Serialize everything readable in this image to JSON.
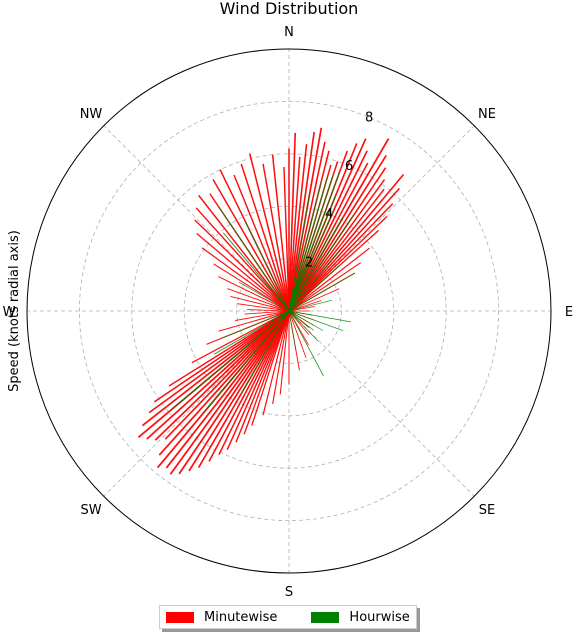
{
  "chart_data": {
    "type": "polar-bar",
    "title": "Wind Distribution",
    "ylabel": "Speed (knots radial axis)",
    "direction_labels": [
      "N",
      "NE",
      "E",
      "SE",
      "S",
      "SW",
      "W",
      "NW"
    ],
    "direction_angles": [
      0,
      45,
      90,
      135,
      180,
      225,
      270,
      315
    ],
    "radial_ticks": [
      2,
      4,
      6,
      8
    ],
    "rlim": [
      0,
      10
    ],
    "grid": true,
    "legend": "bottom-center",
    "series": [
      {
        "name": "Minutewise",
        "color": "#ff0000",
        "bars": [
          [
            0,
            6.2
          ],
          [
            2,
            6.8
          ],
          [
            4,
            5.9
          ],
          [
            6,
            6.4
          ],
          [
            8,
            6.9
          ],
          [
            10,
            7.1
          ],
          [
            12,
            6.6
          ],
          [
            14,
            6.3
          ],
          [
            16,
            5.8
          ],
          [
            18,
            6.0
          ],
          [
            20,
            6.5
          ],
          [
            22,
            6.9
          ],
          [
            24,
            7.2
          ],
          [
            26,
            6.8
          ],
          [
            28,
            6.4
          ],
          [
            30,
            7.6
          ],
          [
            32,
            7.0
          ],
          [
            34,
            6.6
          ],
          [
            36,
            6.2
          ],
          [
            38,
            5.9
          ],
          [
            40,
            6.8
          ],
          [
            42,
            6.3
          ],
          [
            44,
            5.7
          ],
          [
            46,
            5.2
          ],
          [
            48,
            4.6
          ],
          [
            52,
            3.9
          ],
          [
            56,
            3.3
          ],
          [
            60,
            2.9
          ],
          [
            66,
            2.1
          ],
          [
            72,
            1.3
          ],
          [
            80,
            1.0
          ],
          [
            90,
            0.8
          ],
          [
            100,
            0.9
          ],
          [
            110,
            1.0
          ],
          [
            120,
            1.1
          ],
          [
            130,
            1.0
          ],
          [
            140,
            1.2
          ],
          [
            150,
            1.5
          ],
          [
            160,
            1.9
          ],
          [
            170,
            2.3
          ],
          [
            180,
            2.8
          ],
          [
            186,
            3.2
          ],
          [
            190,
            3.6
          ],
          [
            194,
            4.1
          ],
          [
            198,
            4.6
          ],
          [
            200,
            5.0
          ],
          [
            202,
            5.4
          ],
          [
            204,
            5.8
          ],
          [
            206,
            6.1
          ],
          [
            208,
            6.5
          ],
          [
            210,
            6.9
          ],
          [
            212,
            7.2
          ],
          [
            214,
            7.5
          ],
          [
            216,
            7.7
          ],
          [
            218,
            7.6
          ],
          [
            220,
            7.8
          ],
          [
            222,
            7.4
          ],
          [
            224,
            6.8
          ],
          [
            226,
            7.1
          ],
          [
            228,
            7.3
          ],
          [
            230,
            7.5
          ],
          [
            232,
            7.1
          ],
          [
            234,
            6.6
          ],
          [
            236,
            6.2
          ],
          [
            238,
            5.4
          ],
          [
            242,
            4.2
          ],
          [
            248,
            3.4
          ],
          [
            254,
            2.8
          ],
          [
            260,
            2.1
          ],
          [
            266,
            1.7
          ],
          [
            272,
            1.6
          ],
          [
            278,
            2.0
          ],
          [
            284,
            2.3
          ],
          [
            290,
            2.5
          ],
          [
            296,
            3.0
          ],
          [
            302,
            3.4
          ],
          [
            306,
            4.1
          ],
          [
            310,
            4.6
          ],
          [
            314,
            5.0
          ],
          [
            318,
            5.3
          ],
          [
            322,
            5.6
          ],
          [
            326,
            5.4
          ],
          [
            330,
            5.8
          ],
          [
            334,
            6.0
          ],
          [
            338,
            5.6
          ],
          [
            342,
            5.9
          ],
          [
            346,
            6.2
          ],
          [
            350,
            5.7
          ],
          [
            354,
            6.0
          ],
          [
            358,
            5.5
          ]
        ]
      },
      {
        "name": "Hourwise",
        "color": "#008000",
        "bars": [
          [
            10,
            4.6
          ],
          [
            14,
            5.0
          ],
          [
            16,
            5.3
          ],
          [
            18,
            5.4
          ],
          [
            20,
            5.6
          ],
          [
            22,
            4.8
          ],
          [
            24,
            4.2
          ],
          [
            28,
            3.6
          ],
          [
            30,
            4.1
          ],
          [
            34,
            4.4
          ],
          [
            40,
            3.1
          ],
          [
            48,
            2.6
          ],
          [
            60,
            2.9
          ],
          [
            76,
            1.7
          ],
          [
            100,
            2.4
          ],
          [
            110,
            2.2
          ],
          [
            120,
            1.5
          ],
          [
            128,
            1.2
          ],
          [
            136,
            1.6
          ],
          [
            152,
            2.8
          ],
          [
            170,
            1.5
          ],
          [
            210,
            3.6
          ],
          [
            220,
            5.1
          ],
          [
            230,
            5.8
          ],
          [
            240,
            3.3
          ],
          [
            248,
            2.8
          ],
          [
            300,
            2.2
          ],
          [
            320,
            3.9
          ],
          [
            326,
            4.8
          ],
          [
            334,
            3.8
          ]
        ]
      }
    ]
  }
}
